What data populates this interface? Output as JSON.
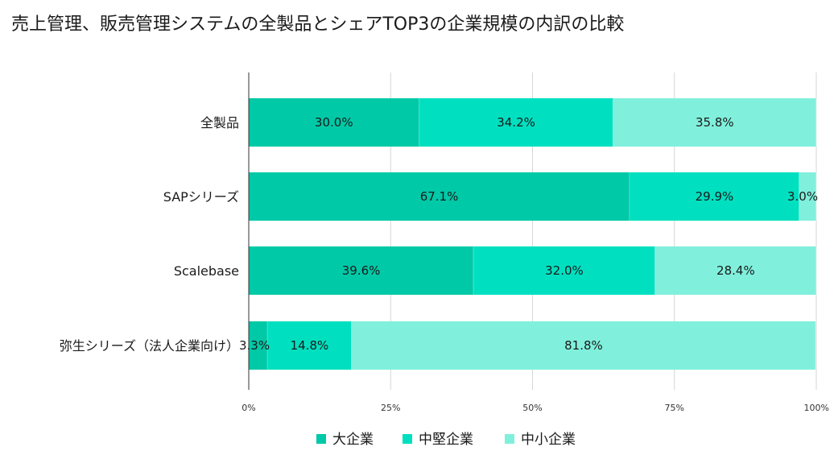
{
  "chart_data": {
    "type": "bar",
    "orientation": "horizontal",
    "stacked": "percent",
    "title": "売上管理、販売管理システムの全製品とシェアTOP3の企業規模の内訳の比較",
    "categories": [
      "全製品",
      "SAPシリーズ",
      "Scalebase",
      "弥生シリーズ（法人企業向け）"
    ],
    "series": [
      {
        "name": "大企業",
        "values": [
          30.0,
          67.1,
          39.6,
          3.3
        ],
        "labels": [
          "30.0%",
          "67.1%",
          "39.6%",
          "3.3%"
        ],
        "color": "#00c9a7"
      },
      {
        "name": "中堅企業",
        "values": [
          34.2,
          29.9,
          32.0,
          14.8
        ],
        "labels": [
          "34.2%",
          "29.9%",
          "32.0%",
          "14.8%"
        ],
        "color": "#00e0c0"
      },
      {
        "name": "中小企業",
        "values": [
          35.8,
          3.0,
          28.4,
          81.8
        ],
        "labels": [
          "35.8%",
          "3.0%",
          "28.4%",
          "81.8%"
        ],
        "color": "#80f0dc"
      }
    ],
    "xlim": [
      0,
      100
    ],
    "xticks": [
      0,
      25,
      50,
      75,
      100
    ],
    "xtick_labels": [
      "0%",
      "25%",
      "50%",
      "75%",
      "100%"
    ],
    "grid": true,
    "legend_position": "bottom"
  }
}
